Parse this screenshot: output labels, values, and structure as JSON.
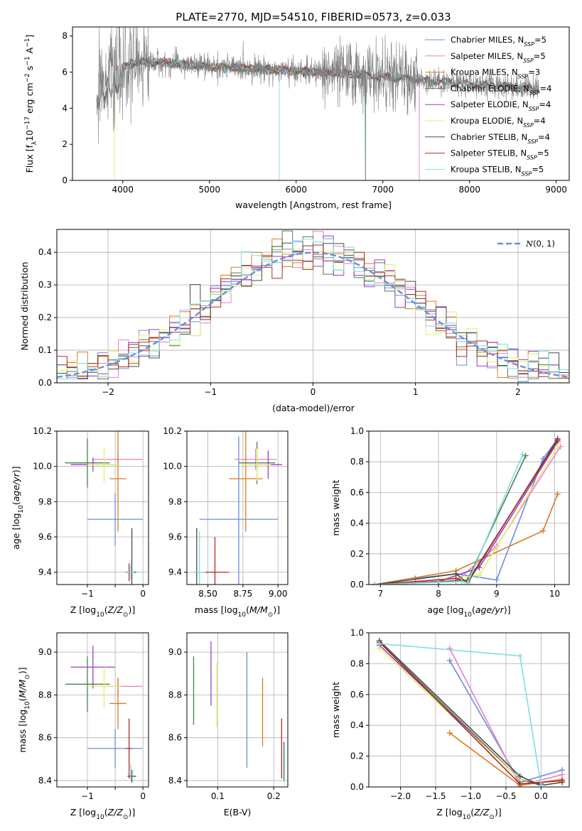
{
  "title": "PLATE=2770, MJD=54510, FIBERID=0573, z=0.033",
  "colors": {
    "Chabrier MILES": "#6a8fdc",
    "Salpeter MILES": "#e87fc2",
    "Kroupa MILES": "#dd7a22",
    "Chabrier ELODIE": "#4f7f4f",
    "Salpeter ELODIE": "#9a3fbf",
    "Kroupa ELODIE": "#dff06a",
    "Chabrier STELIB": "#4a4a4a",
    "Salpeter STELIB": "#b22a2a",
    "Kroupa STELIB": "#7fdede",
    "data": "#808080",
    "gauss": "#6a8fdc"
  },
  "chart_data": [
    {
      "id": "spectrum",
      "type": "line",
      "title": "PLATE=2770, MJD=54510, FIBERID=0573, z=0.033",
      "xlabel": "wavelength [Angstrom, rest frame]",
      "ylabel": "Flux [f_λ10^-17 erg cm^-2 s^-1 A^-1]",
      "xlim": [
        3420,
        9150
      ],
      "ylim": [
        0,
        8.5
      ],
      "xticks": [
        4000,
        5000,
        6000,
        7000,
        8000,
        9000
      ],
      "yticks": [
        0,
        2,
        4,
        6,
        8
      ],
      "grid": false,
      "legend": "upper right",
      "legend_entries": [
        {
          "name": "Chabrier MILES",
          "nssp": "5"
        },
        {
          "name": "Salpeter MILES",
          "nssp": "5"
        },
        {
          "name": "Kroupa MILES",
          "nssp": "3"
        },
        {
          "name": "Chabrier ELODIE",
          "nssp": "4"
        },
        {
          "name": "Salpeter ELODIE",
          "nssp": "4"
        },
        {
          "name": "Kroupa ELODIE",
          "nssp": "4"
        },
        {
          "name": "Chabrier STELIB",
          "nssp": "4"
        },
        {
          "name": "Salpeter STELIB",
          "nssp": "5"
        },
        {
          "name": "Kroupa STELIB",
          "nssp": "5"
        }
      ],
      "continuum": {
        "x": [
          3700,
          3850,
          4000,
          4200,
          4500,
          5000,
          5500,
          6000,
          6500,
          7000,
          7500,
          8000,
          8500,
          8800
        ],
        "y": [
          5.2,
          5.9,
          6.3,
          6.6,
          6.5,
          6.3,
          6.2,
          6.05,
          5.95,
          5.75,
          5.55,
          5.35,
          5.2,
          5.1
        ]
      },
      "model_ranges": {
        "MILES": [
          3700,
          7420
        ],
        "ELODIE": [
          3700,
          6800
        ],
        "STELIB": [
          3700,
          8800
        ]
      },
      "dips": [
        {
          "x": 3905,
          "y": 0,
          "series": "Kroupa ELODIE"
        },
        {
          "x": 5805,
          "y": 0,
          "series": "Kroupa STELIB"
        },
        {
          "x": 6800,
          "y": 0,
          "series": "Chabrier ELODIE"
        },
        {
          "x": 7420,
          "y": 0,
          "series": "Salpeter MILES"
        }
      ]
    },
    {
      "id": "residuals",
      "type": "histogram",
      "xlabel": "(data-model)/error",
      "ylabel": "Normed distribution",
      "xlim": [
        -2.5,
        2.5
      ],
      "ylim": [
        0,
        0.47
      ],
      "xticks": [
        -2,
        -1,
        0,
        1,
        2
      ],
      "yticks": [
        0.0,
        0.1,
        0.2,
        0.3,
        0.4
      ],
      "grid": true,
      "legend": "upper right",
      "legend_entries": [
        {
          "name": "N(0,1)"
        }
      ],
      "bin_width": 0.1,
      "reference": "standard normal density"
    },
    {
      "id": "age-vs-Z",
      "type": "errorbar",
      "xlabel": "Z [log10(Z/Z⊙)]",
      "ylabel": "age [log10(age/yr)]",
      "xlim": [
        -1.55,
        0.1
      ],
      "ylim": [
        9.33,
        10.2
      ],
      "xticks": [
        -1,
        -0.5,
        0
      ],
      "xticklabels": [
        "−1",
        "",
        "0"
      ],
      "yticks": [
        9.4,
        9.6,
        9.8,
        10.0,
        10.2
      ],
      "grid": true,
      "points": [
        {
          "series": "Chabrier MILES",
          "x": -0.5,
          "xerr": 0.5,
          "y": 9.7,
          "yerr": 0.15
        },
        {
          "series": "Salpeter MILES",
          "x": -0.45,
          "xerr": 0.45,
          "y": 10.04,
          "yerr": 0.04
        },
        {
          "series": "Kroupa MILES",
          "x": -0.45,
          "xerr": 0.15,
          "y": 9.93,
          "yerr": 0.3
        },
        {
          "series": "Chabrier ELODIE",
          "x": -1.0,
          "xerr": 0.4,
          "y": 10.02,
          "yerr": 0.14
        },
        {
          "series": "Salpeter ELODIE",
          "x": -0.9,
          "xerr": 0.4,
          "y": 10.01,
          "yerr": 0.04
        },
        {
          "series": "Kroupa ELODIE",
          "x": -0.7,
          "xerr": 0.3,
          "y": 10.01,
          "yerr": 0.1
        },
        {
          "series": "Chabrier STELIB",
          "x": -0.2,
          "xerr": 0.08,
          "y": 9.4,
          "yerr": 0.25
        },
        {
          "series": "Salpeter STELIB",
          "x": -0.25,
          "xerr": 0.05,
          "y": 9.4,
          "yerr": 0.05
        },
        {
          "series": "Kroupa STELIB",
          "x": -0.22,
          "xerr": 0.06,
          "y": 9.4,
          "yerr": 0.04
        }
      ]
    },
    {
      "id": "age-vs-mass",
      "type": "errorbar",
      "xlabel": "mass [log10(M/M⊙)]",
      "xlim": [
        8.35,
        9.07
      ],
      "ylim": [
        9.33,
        10.2
      ],
      "xticks": [
        8.5,
        8.75,
        9.0
      ],
      "xticklabels": [
        "8.50",
        "8.75",
        "9.00"
      ],
      "yticks": [
        9.4,
        9.6,
        9.8,
        10.0,
        10.2
      ],
      "grid": true,
      "points": [
        {
          "series": "Chabrier MILES",
          "x": 8.72,
          "xerr": 0.28,
          "y": 9.7,
          "yerr": 0.47
        },
        {
          "series": "Salpeter MILES",
          "x": 8.84,
          "xerr": 0.15,
          "y": 10.04,
          "yerr": 0.06
        },
        {
          "series": "Kroupa MILES",
          "x": 8.77,
          "xerr": 0.12,
          "y": 9.93,
          "yerr": 0.3
        },
        {
          "series": "Chabrier ELODIE",
          "x": 8.85,
          "xerr": 0.13,
          "y": 10.02,
          "yerr": 0.12
        },
        {
          "series": "Salpeter ELODIE",
          "x": 8.93,
          "xerr": 0.1,
          "y": 10.01,
          "yerr": 0.08
        },
        {
          "series": "Kroupa ELODIE",
          "x": 8.85,
          "xerr": 0.1,
          "y": 10.01,
          "yerr": 0.09
        },
        {
          "series": "Chabrier STELIB",
          "x": 8.42,
          "xerr": 0.02,
          "y": 9.4,
          "yerr": 0.25
        },
        {
          "series": "Salpeter STELIB",
          "x": 8.55,
          "xerr": 0.1,
          "y": 9.4,
          "yerr": 0.2
        },
        {
          "series": "Kroupa STELIB",
          "x": 8.44,
          "xerr": 0.04,
          "y": 9.4,
          "yerr": 0.23
        }
      ]
    },
    {
      "id": "mass-weight-vs-age",
      "type": "line",
      "xlabel": "age [log10(age/yr)]",
      "ylabel": "mass weight",
      "xlim": [
        6.8,
        10.25
      ],
      "ylim": [
        0,
        1.0
      ],
      "xticks": [
        7,
        8,
        9,
        10
      ],
      "yticks": [
        0.0,
        0.2,
        0.4,
        0.6,
        0.8,
        1.0
      ],
      "grid": true,
      "series": [
        {
          "name": "Chabrier MILES",
          "x": [
            7.6,
            8.3,
            9.0,
            9.8,
            10.05
          ],
          "y": [
            0.04,
            0.07,
            0.03,
            0.82,
            0.95
          ]
        },
        {
          "name": "Salpeter MILES",
          "x": [
            6.9,
            7.6,
            8.3,
            9.0,
            10.1
          ],
          "y": [
            0.0,
            0.01,
            0.02,
            0.25,
            0.9
          ]
        },
        {
          "name": "Kroupa MILES",
          "x": [
            6.9,
            8.3,
            9.8,
            10.05
          ],
          "y": [
            0.0,
            0.09,
            0.35,
            0.59
          ]
        },
        {
          "name": "Chabrier ELODIE",
          "x": [
            6.9,
            8.0,
            8.5,
            9.5
          ],
          "y": [
            0.0,
            0.02,
            0.03,
            0.84
          ]
        },
        {
          "name": "Salpeter ELODIE",
          "x": [
            6.9,
            8.0,
            8.7,
            10.05
          ],
          "y": [
            0.0,
            0.02,
            0.11,
            0.93
          ]
        },
        {
          "name": "Kroupa ELODIE",
          "x": [
            6.9,
            8.0,
            8.7,
            10.05
          ],
          "y": [
            0.0,
            0.03,
            0.06,
            0.9
          ]
        },
        {
          "name": "Chabrier STELIB",
          "x": [
            6.9,
            8.3,
            8.5,
            10.05
          ],
          "y": [
            0.0,
            0.07,
            0.01,
            0.95
          ]
        },
        {
          "name": "Salpeter STELIB",
          "x": [
            6.9,
            8.3,
            8.5,
            10.05
          ],
          "y": [
            0.0,
            0.04,
            0.02,
            0.94
          ]
        },
        {
          "name": "Kroupa STELIB",
          "x": [
            6.9,
            8.4,
            8.5,
            9.45
          ],
          "y": [
            0.0,
            0.02,
            0.01,
            0.85
          ]
        }
      ]
    },
    {
      "id": "mass-vs-Z",
      "type": "errorbar",
      "xlabel": "Z [log10(Z/Z⊙)]",
      "ylabel": "mass [log10(M/M⊙)]",
      "xlim": [
        -1.55,
        0.1
      ],
      "ylim": [
        8.37,
        9.09
      ],
      "xticks": [
        -1,
        -0.5,
        0
      ],
      "xticklabels": [
        "−1",
        "",
        "0"
      ],
      "yticks": [
        8.4,
        8.6,
        8.8,
        9.0
      ],
      "grid": true,
      "points": [
        {
          "series": "Chabrier MILES",
          "x": -0.5,
          "xerr": 0.5,
          "y": 8.55,
          "yerr": 0.09
        },
        {
          "series": "Salpeter MILES",
          "x": -0.45,
          "xerr": 0.45,
          "y": 8.84,
          "yerr": 0.04
        },
        {
          "series": "Kroupa MILES",
          "x": -0.45,
          "xerr": 0.15,
          "y": 8.76,
          "yerr": 0.12
        },
        {
          "series": "Chabrier ELODIE",
          "x": -1.0,
          "xerr": 0.4,
          "y": 8.85,
          "yerr": 0.13
        },
        {
          "series": "Salpeter ELODIE",
          "x": -0.9,
          "xerr": 0.4,
          "y": 8.93,
          "yerr": 0.1
        },
        {
          "series": "Kroupa ELODIE",
          "x": -0.7,
          "xerr": 0.3,
          "y": 8.84,
          "yerr": 0.1
        },
        {
          "series": "Chabrier STELIB",
          "x": -0.2,
          "xerr": 0.08,
          "y": 8.42,
          "yerr": 0.03
        },
        {
          "series": "Salpeter STELIB",
          "x": -0.25,
          "xerr": 0.05,
          "y": 8.55,
          "yerr": 0.14
        },
        {
          "series": "Kroupa STELIB",
          "x": -0.22,
          "xerr": 0.06,
          "y": 8.44,
          "yerr": 0.04
        }
      ]
    },
    {
      "id": "mass-vs-EBV",
      "type": "errorbar",
      "xlabel": "E(B-V)",
      "xlim": [
        0.045,
        0.225
      ],
      "ylim": [
        8.37,
        9.09
      ],
      "xticks": [
        0.1,
        0.2
      ],
      "yticks": [
        8.4,
        8.6,
        8.8,
        9.0
      ],
      "grid": true,
      "points": [
        {
          "series": "Chabrier MILES",
          "x": 0.152,
          "y": 8.73,
          "yerr": 0.27
        },
        {
          "series": "Kroupa MILES",
          "x": 0.18,
          "y": 8.72,
          "yerr": 0.16
        },
        {
          "series": "Chabrier ELODIE",
          "x": 0.057,
          "y": 8.82,
          "yerr": 0.16
        },
        {
          "series": "Salpeter ELODIE",
          "x": 0.088,
          "y": 8.9,
          "yerr": 0.15
        },
        {
          "series": "Kroupa ELODIE",
          "x": 0.098,
          "y": 8.8,
          "yerr": 0.15
        },
        {
          "series": "Chabrier STELIB",
          "x": 0.218,
          "y": 8.49,
          "yerr": 0.09
        },
        {
          "series": "Salpeter STELIB",
          "x": 0.214,
          "y": 8.55,
          "yerr": 0.14
        },
        {
          "series": "Kroupa STELIB",
          "x": 0.219,
          "y": 8.48,
          "yerr": 0.09
        }
      ]
    },
    {
      "id": "mass-weight-vs-Z",
      "type": "line",
      "xlabel": "Z [log10(Z/Z⊙)]",
      "ylabel": "mass weight",
      "xlim": [
        -2.45,
        0.4
      ],
      "ylim": [
        0,
        1.0
      ],
      "xticks": [
        -2.0,
        -1.5,
        -1.0,
        -0.5,
        0.0
      ],
      "yticks": [
        0.0,
        0.2,
        0.4,
        0.6,
        0.8,
        1.0
      ],
      "grid": true,
      "series": [
        {
          "name": "Chabrier MILES",
          "x": [
            -1.3,
            -0.3,
            0.3
          ],
          "y": [
            0.82,
            0.03,
            0.11
          ]
        },
        {
          "name": "Salpeter MILES",
          "x": [
            -1.3,
            -0.3,
            0.3
          ],
          "y": [
            0.9,
            0.01,
            0.08
          ]
        },
        {
          "name": "Kroupa MILES",
          "x": [
            -1.3,
            -0.3,
            0.3
          ],
          "y": [
            0.35,
            0.01,
            0.05
          ]
        },
        {
          "name": "Chabrier ELODIE",
          "x": [
            -2.3,
            -0.3,
            0.0
          ],
          "y": [
            0.94,
            0.05,
            0.01
          ]
        },
        {
          "name": "Salpeter ELODIE",
          "x": [
            -2.3,
            -0.3,
            0.0
          ],
          "y": [
            0.92,
            0.05,
            0.02
          ]
        },
        {
          "name": "Kroupa ELODIE",
          "x": [
            -2.3,
            -0.3,
            0.0
          ],
          "y": [
            0.9,
            0.05,
            0.03
          ]
        },
        {
          "name": "Chabrier STELIB",
          "x": [
            -2.3,
            -0.3,
            0.0,
            0.3
          ],
          "y": [
            0.95,
            0.07,
            0.01,
            0.03
          ]
        },
        {
          "name": "Salpeter STELIB",
          "x": [
            -2.3,
            -0.3,
            0.3
          ],
          "y": [
            0.94,
            0.02,
            0.04
          ]
        },
        {
          "name": "Kroupa STELIB",
          "x": [
            -2.3,
            -0.3,
            0.0
          ],
          "y": [
            0.93,
            0.85,
            0.01
          ]
        }
      ]
    }
  ]
}
